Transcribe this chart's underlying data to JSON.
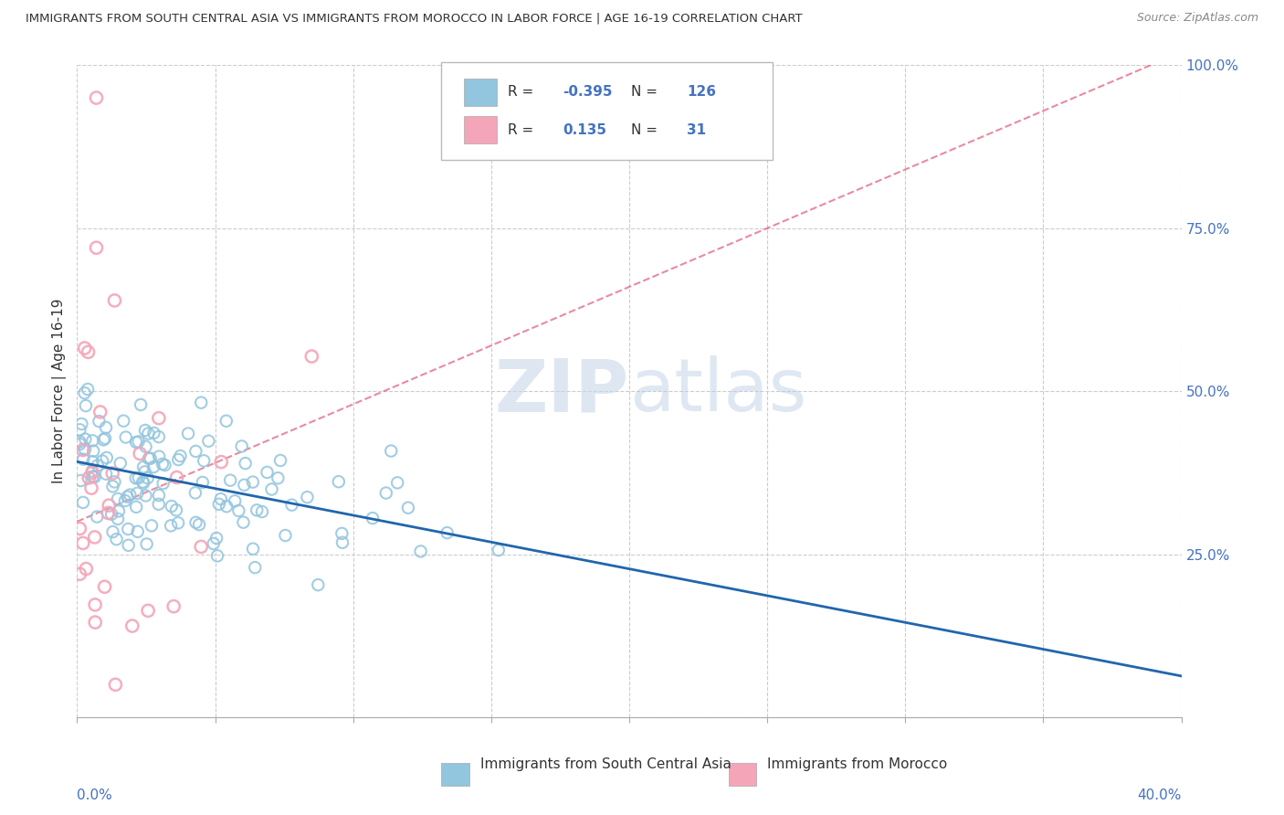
{
  "title": "IMMIGRANTS FROM SOUTH CENTRAL ASIA VS IMMIGRANTS FROM MOROCCO IN LABOR FORCE | AGE 16-19 CORRELATION CHART",
  "source": "Source: ZipAtlas.com",
  "ylabel_label": "In Labor Force | Age 16-19",
  "right_yticks": [
    0.0,
    0.25,
    0.5,
    0.75,
    1.0
  ],
  "right_yticklabels": [
    "",
    "25.0%",
    "50.0%",
    "75.0%",
    "100.0%"
  ],
  "xmin": 0.0,
  "xmax": 0.4,
  "ymin": 0.0,
  "ymax": 1.0,
  "legend_blue_R": "-0.395",
  "legend_blue_N": "126",
  "legend_pink_R": "0.135",
  "legend_pink_N": "31",
  "color_blue": "#92c5de",
  "color_pink": "#f4a5b8",
  "color_trend_blue": "#2166ac",
  "color_trend_pink": "#e05a7a",
  "watermark": "ZIPatlas",
  "grid_color": "#cccccc",
  "grid_style": "--"
}
